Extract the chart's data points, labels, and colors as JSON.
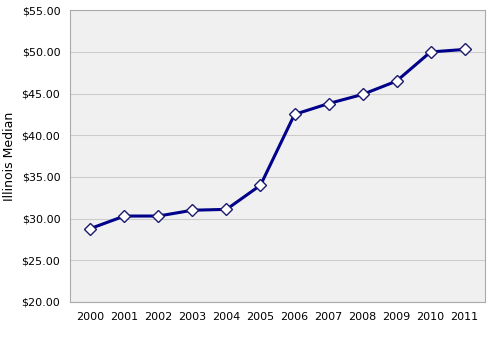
{
  "years": [
    2000,
    2001,
    2002,
    2003,
    2004,
    2005,
    2006,
    2007,
    2008,
    2009,
    2010,
    2011
  ],
  "values": [
    28.8,
    30.3,
    30.3,
    31.0,
    31.1,
    34.0,
    42.5,
    43.8,
    44.9,
    46.5,
    50.0,
    50.3
  ],
  "line_color": "#00008B",
  "marker_style": "D",
  "marker_face_color": "white",
  "marker_edge_color": "#1a1a6e",
  "marker_size": 6,
  "line_width": 2.2,
  "ylabel": "Illinois Median",
  "xlabel": "",
  "ylim": [
    20.0,
    55.0
  ],
  "ytick_step": 5.0,
  "background_color": "#ffffff",
  "plot_bg_color": "#f0f0f0",
  "grid_color": "#cccccc",
  "spine_color": "#aaaaaa",
  "title": ""
}
